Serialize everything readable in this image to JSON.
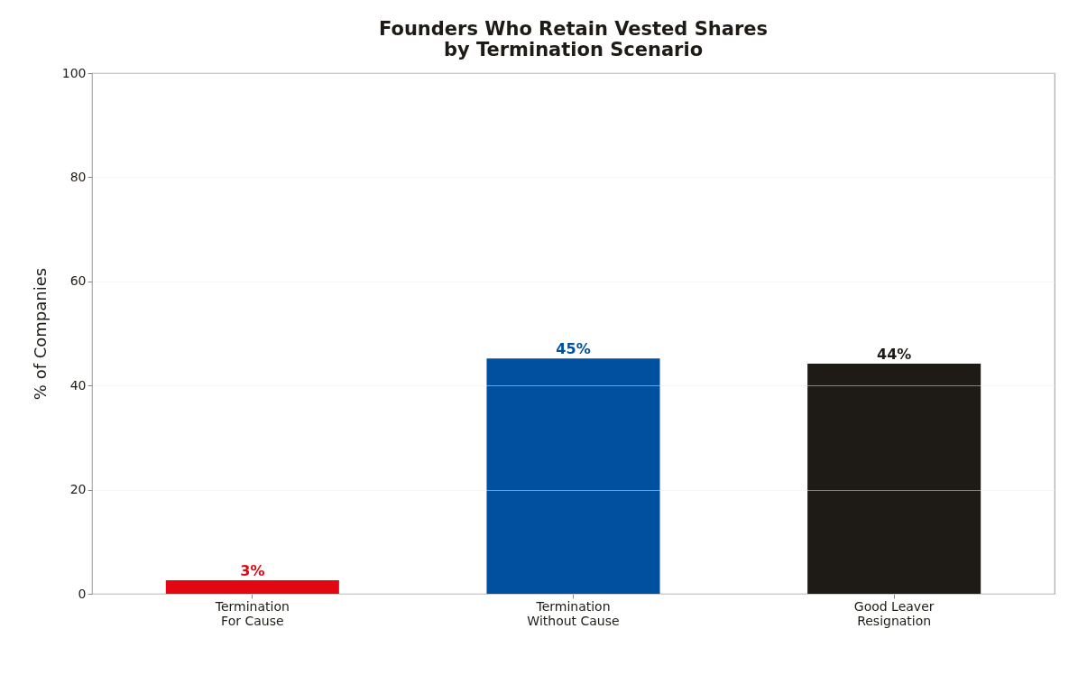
{
  "chart_data": {
    "type": "bar",
    "title": "Founders Who Retain Vested Shares\nby Termination Scenario",
    "ylabel": "% of Companies",
    "categories": [
      "Termination\nFor Cause",
      "Termination\nWithout Cause",
      "Good Leaver\nResignation"
    ],
    "values": [
      2.6,
      45.2,
      44.2
    ],
    "colors": [
      "#e30613",
      "#0050a0",
      "#1e1b16"
    ],
    "value_labels": [
      "3%",
      "45%",
      "44%"
    ],
    "ylim": [
      0,
      100
    ],
    "yticks": [
      0,
      20,
      40,
      60,
      80,
      100
    ],
    "grid": "y"
  }
}
